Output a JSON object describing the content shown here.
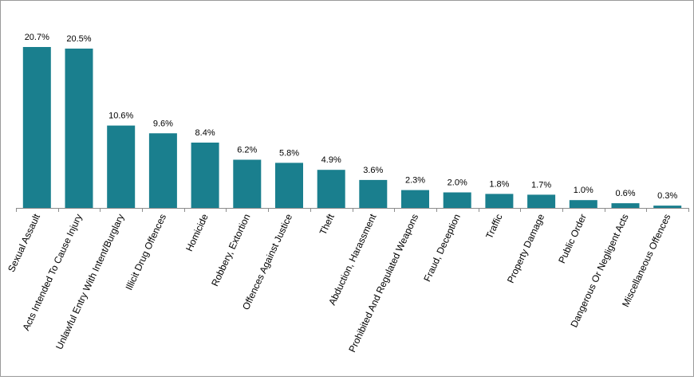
{
  "chart_data": {
    "type": "bar",
    "title": "",
    "xlabel": "",
    "ylabel": "",
    "ylim": [
      0,
      20.7
    ],
    "grid": false,
    "legend": "none",
    "bar_color": "#1a7f8e",
    "categories": [
      "Sexual Assault",
      "Acts Intended To Cause Injury",
      "Unlawful Entry With Intent/Burglary",
      "Illicit Drug Offences",
      "Homicide",
      "Robbery, Extortion",
      "Offences Against Justice",
      "Theft",
      "Abduction, Harassment",
      "Prohibited And Regulated Weapons",
      "Fraud, Deception",
      "Traffic",
      "Property Damage",
      "Public Order",
      "Dangerous Or Negligent Acts",
      "Miscellaneous Offences"
    ],
    "values": [
      20.7,
      20.5,
      10.6,
      9.6,
      8.4,
      6.2,
      5.8,
      4.9,
      3.6,
      2.3,
      2.0,
      1.8,
      1.7,
      1.0,
      0.6,
      0.3
    ],
    "data_labels": [
      "20.7%",
      "20.5%",
      "10.6%",
      "9.6%",
      "8.4%",
      "6.2%",
      "5.8%",
      "4.9%",
      "3.6%",
      "2.3%",
      "2.0%",
      "1.8%",
      "1.7%",
      "1.0%",
      "0.6%",
      "0.3%"
    ]
  }
}
